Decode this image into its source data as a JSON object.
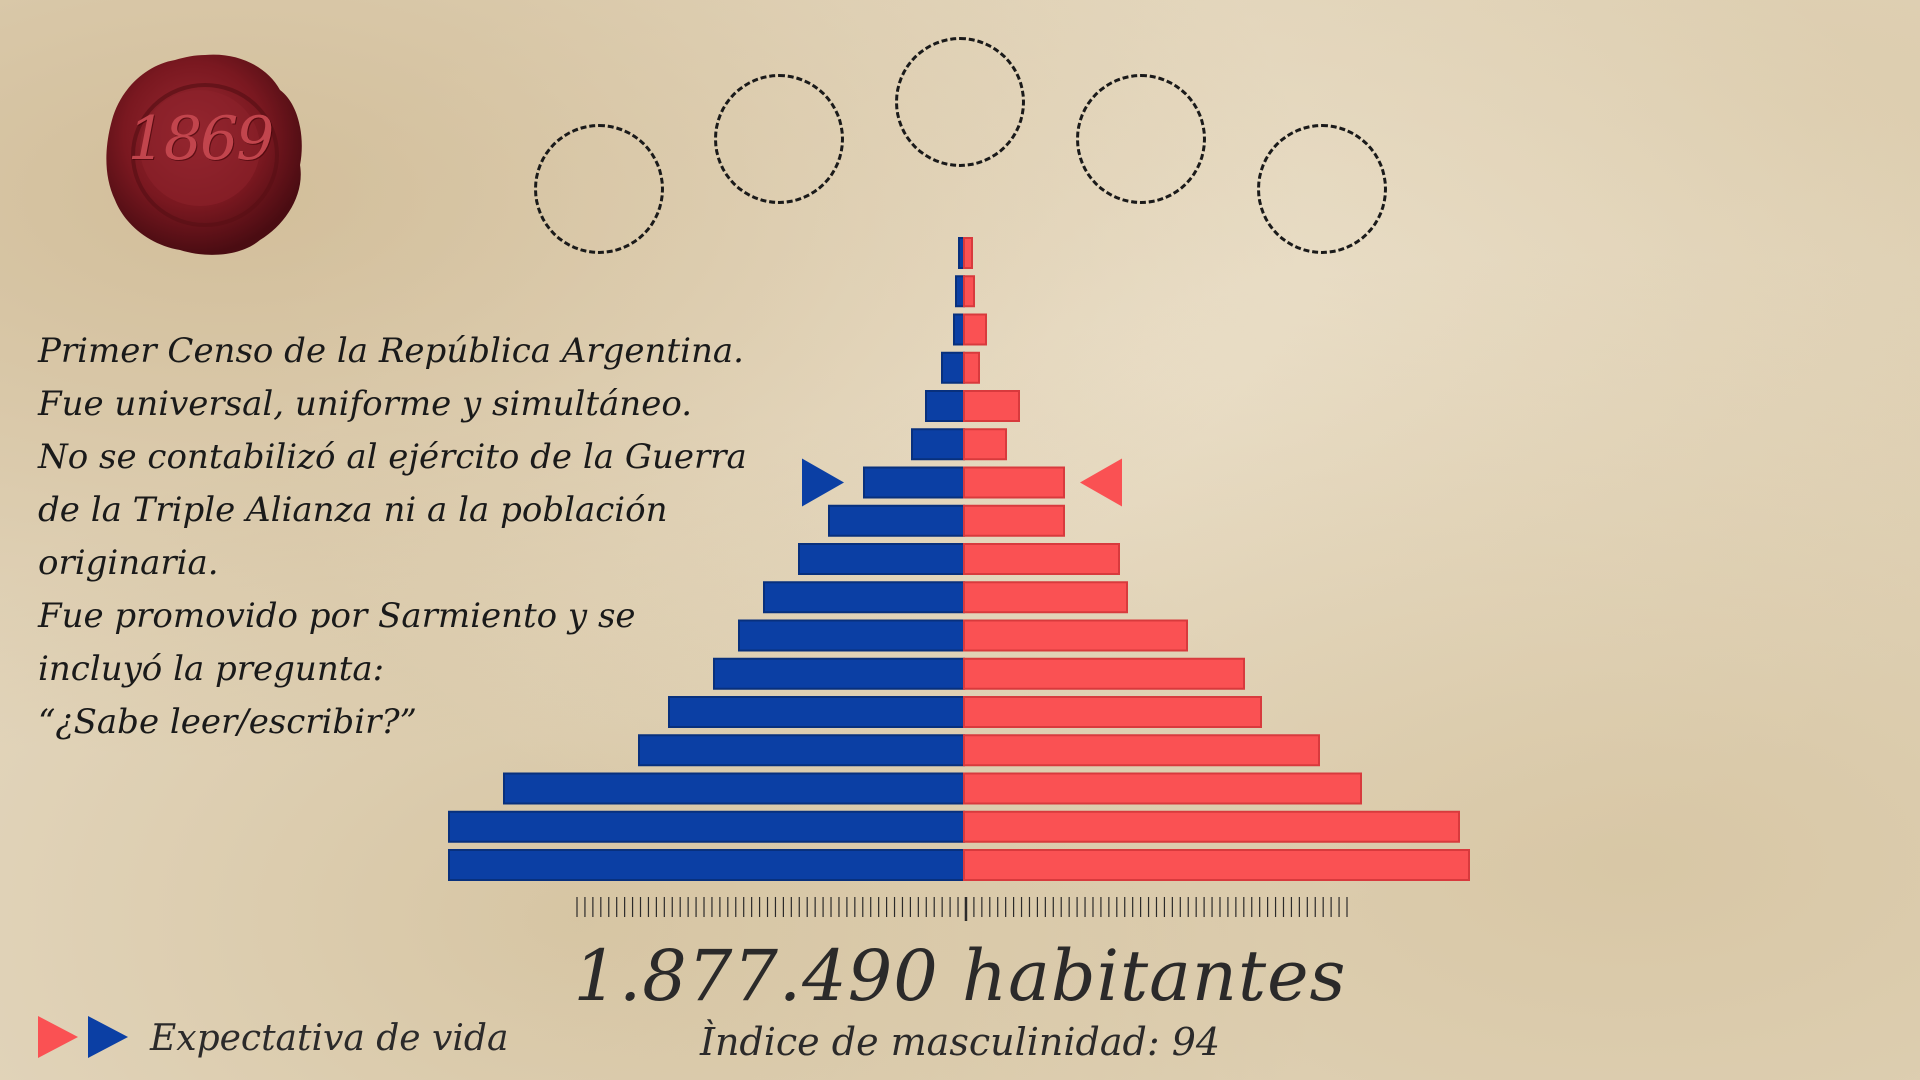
{
  "seal": {
    "year": "1869",
    "icon": "wax-seal-icon",
    "color": "#7a1820"
  },
  "description": {
    "lines": [
      "Primer Censo de la República Argentina.",
      "Fue universal, uniforme y simultáneo.",
      "No se contabilizó al ejército de la Guerra",
      "de la Triple Alianza ni a la población",
      "originaria.",
      "Fue promovido por Sarmiento y se",
      "incluyó la pregunta:",
      "“¿Sabe leer/escribir?”"
    ]
  },
  "chart_data": {
    "type": "bar",
    "orientation": "horizontal",
    "layout": "population-pyramid",
    "series": [
      {
        "color": "#0b3fa4",
        "values": [
          515,
          515,
          460,
          325,
          295,
          250,
          225,
          200,
          165,
          135,
          100,
          52,
          38,
          22,
          10,
          8,
          5
        ]
      },
      {
        "color": "#fa5153",
        "values": [
          505,
          495,
          397,
          355,
          297,
          280,
          223,
          163,
          155,
          100,
          100,
          42,
          55,
          15,
          22,
          10,
          8
        ]
      }
    ],
    "marked_bar_index": 10,
    "tick_count": 98,
    "grid": false
  },
  "empty_circles": {
    "icon": "dashed-circle-icon",
    "count": 5
  },
  "footer": {
    "total": "1.877.490 habitantes",
    "masculinity": "Ìndice de masculinidad: 94",
    "life_expectancy": "Expectativa de vida"
  },
  "colors": {
    "male": "#0b3fa4",
    "female": "#fa5153",
    "text": "#2b2a2a"
  }
}
